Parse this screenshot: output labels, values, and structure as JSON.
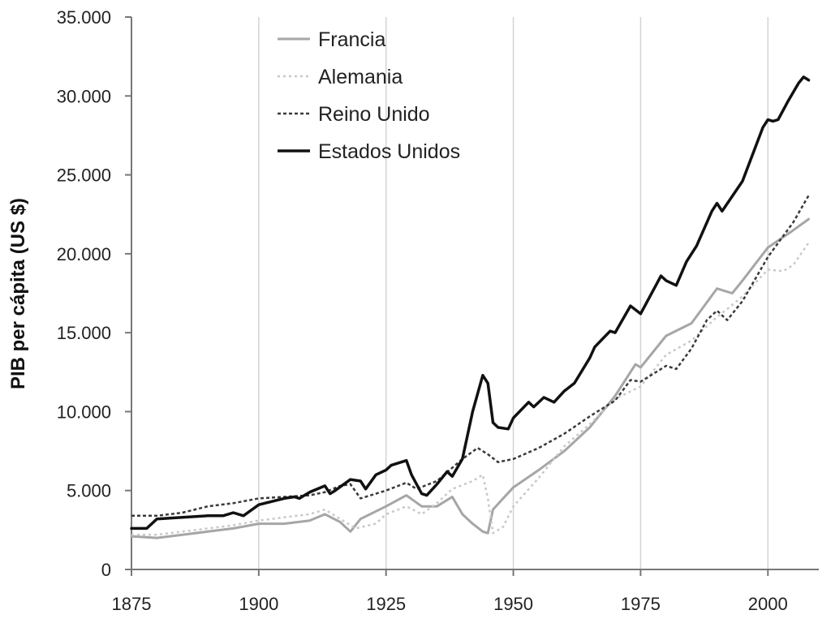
{
  "chart_data": {
    "type": "line",
    "title": "",
    "xlabel": "",
    "ylabel": "PIB per cápita (US $)",
    "xlim": [
      1875,
      2010
    ],
    "ylim": [
      0,
      35000
    ],
    "x_ticks": [
      1875,
      1900,
      1925,
      1950,
      1975,
      2000
    ],
    "x_tick_labels": [
      "1875",
      "1900",
      "1925",
      "1950",
      "1975",
      "2000"
    ],
    "y_ticks": [
      0,
      5000,
      10000,
      15000,
      20000,
      25000,
      30000,
      35000
    ],
    "y_tick_labels": [
      "0",
      "5.000",
      "10.000",
      "15.000",
      "20.000",
      "25.000",
      "30.000",
      "35.000"
    ],
    "grid": "vertical",
    "legend_position": "top-left",
    "series": [
      {
        "name": "Francia",
        "color": "#a6a6a6",
        "dash": "solid",
        "width": 3,
        "points": [
          [
            1875,
            2100
          ],
          [
            1880,
            2000
          ],
          [
            1885,
            2200
          ],
          [
            1890,
            2400
          ],
          [
            1895,
            2600
          ],
          [
            1900,
            2900
          ],
          [
            1905,
            2900
          ],
          [
            1910,
            3100
          ],
          [
            1913,
            3500
          ],
          [
            1916,
            3000
          ],
          [
            1918,
            2400
          ],
          [
            1920,
            3200
          ],
          [
            1925,
            4000
          ],
          [
            1929,
            4700
          ],
          [
            1932,
            4000
          ],
          [
            1935,
            4000
          ],
          [
            1938,
            4600
          ],
          [
            1940,
            3500
          ],
          [
            1942,
            2900
          ],
          [
            1944,
            2400
          ],
          [
            1945,
            2300
          ],
          [
            1946,
            3800
          ],
          [
            1948,
            4500
          ],
          [
            1950,
            5200
          ],
          [
            1955,
            6300
          ],
          [
            1960,
            7500
          ],
          [
            1965,
            9000
          ],
          [
            1970,
            11000
          ],
          [
            1974,
            13000
          ],
          [
            1975,
            12800
          ],
          [
            1980,
            14800
          ],
          [
            1985,
            15600
          ],
          [
            1990,
            17800
          ],
          [
            1993,
            17500
          ],
          [
            1995,
            18300
          ],
          [
            2000,
            20400
          ],
          [
            2005,
            21500
          ],
          [
            2008,
            22200
          ]
        ]
      },
      {
        "name": "Alemania",
        "color": "#c8c8c8",
        "dash": "3,4",
        "width": 2.5,
        "points": [
          [
            1875,
            2200
          ],
          [
            1880,
            2200
          ],
          [
            1885,
            2400
          ],
          [
            1890,
            2600
          ],
          [
            1895,
            2800
          ],
          [
            1900,
            3100
          ],
          [
            1905,
            3300
          ],
          [
            1910,
            3500
          ],
          [
            1913,
            3800
          ],
          [
            1916,
            3200
          ],
          [
            1919,
            2600
          ],
          [
            1923,
            2900
          ],
          [
            1925,
            3500
          ],
          [
            1929,
            4000
          ],
          [
            1932,
            3500
          ],
          [
            1935,
            4200
          ],
          [
            1938,
            5100
          ],
          [
            1942,
            5600
          ],
          [
            1944,
            6000
          ],
          [
            1945,
            4500
          ],
          [
            1946,
            2300
          ],
          [
            1948,
            2700
          ],
          [
            1950,
            4000
          ],
          [
            1955,
            5800
          ],
          [
            1960,
            7800
          ],
          [
            1965,
            9200
          ],
          [
            1970,
            10800
          ],
          [
            1975,
            11600
          ],
          [
            1980,
            13600
          ],
          [
            1985,
            14500
          ],
          [
            1990,
            16000
          ],
          [
            1992,
            16500
          ],
          [
            1995,
            17300
          ],
          [
            2000,
            19000
          ],
          [
            2003,
            18900
          ],
          [
            2005,
            19300
          ],
          [
            2008,
            20700
          ]
        ]
      },
      {
        "name": "Reino Unido",
        "color": "#3a3a3a",
        "dash": "4,3",
        "width": 2.5,
        "points": [
          [
            1875,
            3400
          ],
          [
            1880,
            3400
          ],
          [
            1885,
            3600
          ],
          [
            1890,
            4000
          ],
          [
            1895,
            4200
          ],
          [
            1900,
            4500
          ],
          [
            1905,
            4600
          ],
          [
            1910,
            4700
          ],
          [
            1913,
            4900
          ],
          [
            1916,
            5300
          ],
          [
            1918,
            5400
          ],
          [
            1920,
            4500
          ],
          [
            1925,
            5000
          ],
          [
            1929,
            5500
          ],
          [
            1931,
            5100
          ],
          [
            1935,
            5600
          ],
          [
            1940,
            7000
          ],
          [
            1943,
            7700
          ],
          [
            1945,
            7300
          ],
          [
            1947,
            6800
          ],
          [
            1950,
            7000
          ],
          [
            1955,
            7700
          ],
          [
            1960,
            8600
          ],
          [
            1965,
            9700
          ],
          [
            1970,
            10700
          ],
          [
            1973,
            12000
          ],
          [
            1975,
            11900
          ],
          [
            1980,
            12900
          ],
          [
            1982,
            12700
          ],
          [
            1985,
            14000
          ],
          [
            1988,
            15800
          ],
          [
            1990,
            16400
          ],
          [
            1992,
            15800
          ],
          [
            1995,
            17000
          ],
          [
            2000,
            19800
          ],
          [
            2005,
            22000
          ],
          [
            2008,
            23700
          ]
        ]
      },
      {
        "name": "Estados Unidos",
        "color": "#111111",
        "dash": "solid",
        "width": 3.5,
        "points": [
          [
            1875,
            2600
          ],
          [
            1878,
            2600
          ],
          [
            1880,
            3200
          ],
          [
            1885,
            3300
          ],
          [
            1890,
            3400
          ],
          [
            1893,
            3400
          ],
          [
            1895,
            3600
          ],
          [
            1897,
            3400
          ],
          [
            1900,
            4100
          ],
          [
            1905,
            4500
          ],
          [
            1907,
            4600
          ],
          [
            1908,
            4500
          ],
          [
            1910,
            4900
          ],
          [
            1913,
            5300
          ],
          [
            1914,
            4800
          ],
          [
            1915,
            5000
          ],
          [
            1918,
            5700
          ],
          [
            1920,
            5600
          ],
          [
            1921,
            5100
          ],
          [
            1923,
            6000
          ],
          [
            1925,
            6300
          ],
          [
            1926,
            6600
          ],
          [
            1929,
            6900
          ],
          [
            1930,
            6000
          ],
          [
            1932,
            4800
          ],
          [
            1933,
            4700
          ],
          [
            1935,
            5400
          ],
          [
            1937,
            6200
          ],
          [
            1938,
            5900
          ],
          [
            1940,
            7000
          ],
          [
            1942,
            10000
          ],
          [
            1944,
            12300
          ],
          [
            1945,
            11800
          ],
          [
            1946,
            9300
          ],
          [
            1947,
            9000
          ],
          [
            1949,
            8900
          ],
          [
            1950,
            9600
          ],
          [
            1953,
            10600
          ],
          [
            1954,
            10300
          ],
          [
            1956,
            10900
          ],
          [
            1958,
            10600
          ],
          [
            1960,
            11300
          ],
          [
            1962,
            11800
          ],
          [
            1965,
            13400
          ],
          [
            1966,
            14100
          ],
          [
            1969,
            15100
          ],
          [
            1970,
            15000
          ],
          [
            1973,
            16700
          ],
          [
            1975,
            16200
          ],
          [
            1978,
            18000
          ],
          [
            1979,
            18600
          ],
          [
            1980,
            18300
          ],
          [
            1982,
            18000
          ],
          [
            1984,
            19500
          ],
          [
            1986,
            20500
          ],
          [
            1989,
            22700
          ],
          [
            1990,
            23200
          ],
          [
            1991,
            22700
          ],
          [
            1995,
            24600
          ],
          [
            1999,
            28000
          ],
          [
            2000,
            28500
          ],
          [
            2001,
            28400
          ],
          [
            2002,
            28500
          ],
          [
            2004,
            29700
          ],
          [
            2006,
            30800
          ],
          [
            2007,
            31200
          ],
          [
            2008,
            31000
          ]
        ]
      }
    ]
  }
}
